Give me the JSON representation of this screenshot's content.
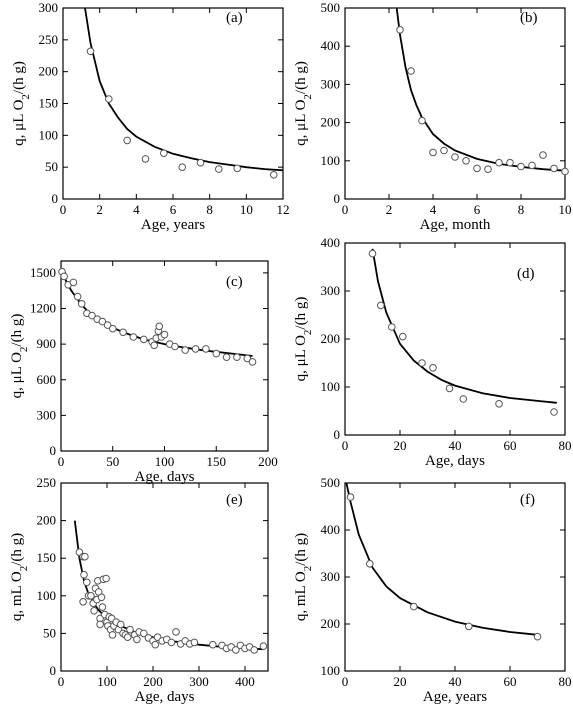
{
  "figure": {
    "curve_color": "#000000",
    "marker_fill": "#ffffff",
    "marker_stroke": "#555555"
  },
  "chart_data": [
    {
      "panel": "(a)",
      "type": "scatter",
      "xlabel": "Age, years",
      "ylabel": "q, μL O2/(h g)",
      "xlim": [
        0,
        12
      ],
      "ylim": [
        0,
        300
      ],
      "xticks": [
        0,
        2,
        4,
        6,
        8,
        10,
        12
      ],
      "yticks": [
        0,
        50,
        100,
        150,
        200,
        250,
        300
      ],
      "points": [
        [
          1.5,
          232
        ],
        [
          2.5,
          157
        ],
        [
          3.5,
          92
        ],
        [
          4.5,
          63
        ],
        [
          5.5,
          72
        ],
        [
          6.5,
          50
        ],
        [
          7.5,
          57
        ],
        [
          8.5,
          47
        ],
        [
          9.5,
          48
        ],
        [
          11.5,
          38
        ]
      ],
      "fit_curve": [
        [
          1.2,
          300
        ],
        [
          1.5,
          245
        ],
        [
          2,
          185
        ],
        [
          2.5,
          150
        ],
        [
          3,
          128
        ],
        [
          3.5,
          110
        ],
        [
          4,
          98
        ],
        [
          5,
          82
        ],
        [
          6,
          71
        ],
        [
          7,
          64
        ],
        [
          8,
          58
        ],
        [
          9,
          54
        ],
        [
          10,
          50
        ],
        [
          11,
          47
        ],
        [
          12,
          45
        ]
      ]
    },
    {
      "panel": "(b)",
      "type": "scatter",
      "xlabel": "Age, month",
      "ylabel": "q, μL O2/(h g)",
      "xlim": [
        0,
        10
      ],
      "ylim": [
        0,
        500
      ],
      "xticks": [
        0,
        2,
        4,
        6,
        8,
        10
      ],
      "yticks": [
        0,
        100,
        200,
        300,
        400,
        500
      ],
      "points": [
        [
          2.5,
          443
        ],
        [
          3,
          335
        ],
        [
          3.5,
          205
        ],
        [
          4,
          122
        ],
        [
          4.5,
          127
        ],
        [
          5,
          110
        ],
        [
          5.5,
          100
        ],
        [
          6,
          80
        ],
        [
          6.5,
          78
        ],
        [
          7,
          95
        ],
        [
          7.5,
          95
        ],
        [
          8,
          85
        ],
        [
          8.5,
          88
        ],
        [
          9,
          115
        ],
        [
          9.5,
          80
        ],
        [
          10,
          72
        ]
      ],
      "fit_curve": [
        [
          2.35,
          500
        ],
        [
          2.5,
          430
        ],
        [
          2.75,
          345
        ],
        [
          3,
          285
        ],
        [
          3.25,
          245
        ],
        [
          3.5,
          213
        ],
        [
          4,
          170
        ],
        [
          4.5,
          145
        ],
        [
          5,
          127
        ],
        [
          6,
          105
        ],
        [
          7,
          92
        ],
        [
          8,
          84
        ],
        [
          9,
          78
        ],
        [
          10,
          74
        ]
      ]
    },
    {
      "panel": "(c)",
      "type": "scatter",
      "xlabel": "Age, days",
      "ylabel": "q, μL O2/(h g)",
      "xlim": [
        0,
        200
      ],
      "ylim": [
        0,
        1600
      ],
      "xticks": [
        0,
        50,
        100,
        150,
        200
      ],
      "yticks": [
        0,
        300,
        600,
        900,
        1200,
        1500
      ],
      "points": [
        [
          1,
          1510
        ],
        [
          3,
          1470
        ],
        [
          7,
          1400
        ],
        [
          12,
          1420
        ],
        [
          16,
          1300
        ],
        [
          20,
          1240
        ],
        [
          25,
          1160
        ],
        [
          30,
          1140
        ],
        [
          35,
          1110
        ],
        [
          40,
          1090
        ],
        [
          45,
          1060
        ],
        [
          50,
          1030
        ],
        [
          60,
          1000
        ],
        [
          70,
          960
        ],
        [
          80,
          940
        ],
        [
          88,
          920
        ],
        [
          90,
          890
        ],
        [
          92,
          950
        ],
        [
          94,
          1010
        ],
        [
          95,
          1050
        ],
        [
          97,
          960
        ],
        [
          100,
          980
        ],
        [
          105,
          900
        ],
        [
          110,
          880
        ],
        [
          120,
          850
        ],
        [
          130,
          860
        ],
        [
          140,
          860
        ],
        [
          150,
          820
        ],
        [
          160,
          790
        ],
        [
          170,
          790
        ],
        [
          180,
          780
        ],
        [
          185,
          750
        ]
      ],
      "fit_curve": [
        [
          1,
          1520
        ],
        [
          5,
          1430
        ],
        [
          10,
          1350
        ],
        [
          20,
          1230
        ],
        [
          30,
          1140
        ],
        [
          40,
          1080
        ],
        [
          60,
          1000
        ],
        [
          80,
          940
        ],
        [
          100,
          900
        ],
        [
          120,
          870
        ],
        [
          140,
          845
        ],
        [
          160,
          825
        ],
        [
          185,
          800
        ]
      ]
    },
    {
      "panel": "(d)",
      "type": "scatter",
      "xlabel": "Age, days",
      "ylabel": "q, μL O2/(h g)",
      "xlim": [
        0,
        80
      ],
      "ylim": [
        0,
        400
      ],
      "xticks": [
        0,
        20,
        40,
        60,
        80
      ],
      "yticks": [
        0,
        100,
        200,
        300,
        400
      ],
      "points": [
        [
          10,
          378
        ],
        [
          13,
          270
        ],
        [
          17,
          225
        ],
        [
          21,
          205
        ],
        [
          28,
          150
        ],
        [
          32,
          140
        ],
        [
          38,
          97
        ],
        [
          43,
          75
        ],
        [
          56,
          65
        ],
        [
          76,
          48
        ]
      ],
      "fit_curve": [
        [
          10,
          388
        ],
        [
          12,
          320
        ],
        [
          15,
          255
        ],
        [
          20,
          190
        ],
        [
          25,
          155
        ],
        [
          30,
          132
        ],
        [
          35,
          115
        ],
        [
          40,
          103
        ],
        [
          50,
          87
        ],
        [
          60,
          77
        ],
        [
          70,
          71
        ],
        [
          77,
          67
        ]
      ]
    },
    {
      "panel": "(e)",
      "type": "scatter",
      "xlabel": "Age, days",
      "ylabel": "q, mL O2/(h g)",
      "xlim": [
        0,
        450
      ],
      "ylim": [
        0,
        250
      ],
      "xticks": [
        0,
        100,
        200,
        300,
        400
      ],
      "yticks": [
        0,
        50,
        100,
        150,
        200,
        250
      ],
      "points": [
        [
          40,
          158
        ],
        [
          48,
          152
        ],
        [
          52,
          152
        ],
        [
          50,
          128
        ],
        [
          48,
          92
        ],
        [
          56,
          118
        ],
        [
          60,
          100
        ],
        [
          65,
          100
        ],
        [
          70,
          90
        ],
        [
          72,
          80
        ],
        [
          75,
          110
        ],
        [
          78,
          95
        ],
        [
          80,
          120
        ],
        [
          82,
          105
        ],
        [
          85,
          70
        ],
        [
          85,
          62
        ],
        [
          88,
          98
        ],
        [
          90,
          85
        ],
        [
          92,
          122
        ],
        [
          95,
          75
        ],
        [
          98,
          123
        ],
        [
          100,
          65
        ],
        [
          102,
          60
        ],
        [
          105,
          72
        ],
        [
          108,
          55
        ],
        [
          110,
          70
        ],
        [
          112,
          48
        ],
        [
          115,
          60
        ],
        [
          120,
          65
        ],
        [
          125,
          55
        ],
        [
          130,
          62
        ],
        [
          135,
          50
        ],
        [
          140,
          48
        ],
        [
          145,
          45
        ],
        [
          150,
          55
        ],
        [
          160,
          48
        ],
        [
          165,
          42
        ],
        [
          170,
          52
        ],
        [
          180,
          50
        ],
        [
          190,
          44
        ],
        [
          200,
          40
        ],
        [
          205,
          35
        ],
        [
          210,
          45
        ],
        [
          220,
          40
        ],
        [
          230,
          42
        ],
        [
          240,
          38
        ],
        [
          250,
          52
        ],
        [
          260,
          36
        ],
        [
          270,
          40
        ],
        [
          280,
          36
        ],
        [
          290,
          38
        ],
        [
          330,
          35
        ],
        [
          350,
          34
        ],
        [
          360,
          30
        ],
        [
          370,
          32
        ],
        [
          380,
          28
        ],
        [
          390,
          34
        ],
        [
          400,
          30
        ],
        [
          410,
          32
        ],
        [
          420,
          28
        ],
        [
          440,
          33
        ]
      ],
      "fit_curve": [
        [
          30,
          200
        ],
        [
          40,
          150
        ],
        [
          50,
          120
        ],
        [
          60,
          102
        ],
        [
          80,
          82
        ],
        [
          100,
          70
        ],
        [
          130,
          60
        ],
        [
          160,
          52
        ],
        [
          200,
          45
        ],
        [
          250,
          39
        ],
        [
          300,
          35
        ],
        [
          350,
          32
        ],
        [
          400,
          30
        ],
        [
          440,
          29
        ]
      ]
    },
    {
      "panel": "(f)",
      "type": "scatter",
      "xlabel": "Age, years",
      "ylabel": "q, mL O2/(h g)",
      "xlim": [
        0,
        80
      ],
      "ylim": [
        100,
        500
      ],
      "xticks": [
        0,
        20,
        40,
        60,
        80
      ],
      "yticks": [
        100,
        200,
        300,
        400,
        500
      ],
      "points": [
        [
          2,
          470
        ],
        [
          9,
          328
        ],
        [
          25,
          237
        ],
        [
          45,
          195
        ],
        [
          70,
          173
        ]
      ],
      "fit_curve": [
        [
          0.5,
          500
        ],
        [
          2,
          460
        ],
        [
          5,
          390
        ],
        [
          10,
          320
        ],
        [
          15,
          280
        ],
        [
          20,
          255
        ],
        [
          30,
          225
        ],
        [
          40,
          205
        ],
        [
          50,
          192
        ],
        [
          60,
          183
        ],
        [
          70,
          177
        ]
      ]
    }
  ]
}
